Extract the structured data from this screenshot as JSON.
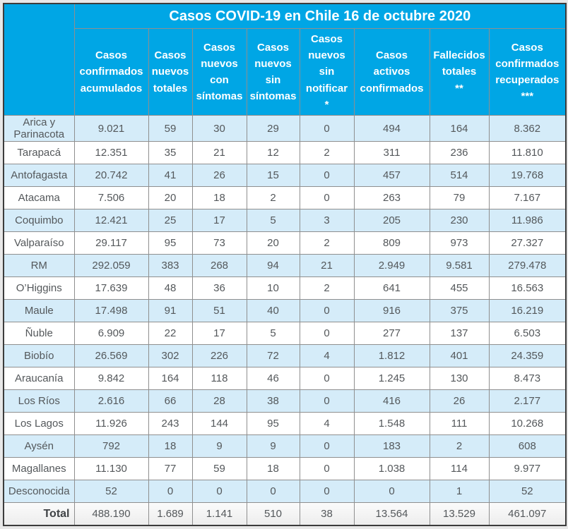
{
  "page": {
    "title": "Casos COVID-19 en Chile 16 de octubre 2020"
  },
  "colors": {
    "header_background": "#00a6e5",
    "header_text": "#ffffff",
    "row_alt_background": "#d5ecf9",
    "row_background": "#ffffff",
    "total_row_background": "#f2f2f2",
    "grid_line": "#8f8f8f",
    "outer_border": "#3c3c3c",
    "data_text": "#54585b",
    "page_background": "#e8e8e8"
  },
  "table": {
    "corner_label": "",
    "columns": [
      "Casos\nconfirmados\nacumulados",
      "Casos\nnuevos\ntotales",
      "Casos\nnuevos\ncon\nsíntomas",
      "Casos\nnuevos\nsin\nsíntomas",
      "Casos\nnuevos\nsin\nnotificar\n*",
      "Casos\nactivos\nconfirmados",
      "Fallecidos\ntotales\n**",
      "Casos\nconfirmados\nrecuperados\n***"
    ],
    "rows": [
      {
        "region": "Arica y Parinacota",
        "values": [
          "9.021",
          "59",
          "30",
          "29",
          "0",
          "494",
          "164",
          "8.362"
        ]
      },
      {
        "region": "Tarapacá",
        "values": [
          "12.351",
          "35",
          "21",
          "12",
          "2",
          "311",
          "236",
          "11.810"
        ]
      },
      {
        "region": "Antofagasta",
        "values": [
          "20.742",
          "41",
          "26",
          "15",
          "0",
          "457",
          "514",
          "19.768"
        ]
      },
      {
        "region": "Atacama",
        "values": [
          "7.506",
          "20",
          "18",
          "2",
          "0",
          "263",
          "79",
          "7.167"
        ]
      },
      {
        "region": "Coquimbo",
        "values": [
          "12.421",
          "25",
          "17",
          "5",
          "3",
          "205",
          "230",
          "11.986"
        ]
      },
      {
        "region": "Valparaíso",
        "values": [
          "29.117",
          "95",
          "73",
          "20",
          "2",
          "809",
          "973",
          "27.327"
        ]
      },
      {
        "region": "RM",
        "values": [
          "292.059",
          "383",
          "268",
          "94",
          "21",
          "2.949",
          "9.581",
          "279.478"
        ]
      },
      {
        "region": "O’Higgins",
        "values": [
          "17.639",
          "48",
          "36",
          "10",
          "2",
          "641",
          "455",
          "16.563"
        ]
      },
      {
        "region": "Maule",
        "values": [
          "17.498",
          "91",
          "51",
          "40",
          "0",
          "916",
          "375",
          "16.219"
        ]
      },
      {
        "region": "Ñuble",
        "values": [
          "6.909",
          "22",
          "17",
          "5",
          "0",
          "277",
          "137",
          "6.503"
        ]
      },
      {
        "region": "Biobío",
        "values": [
          "26.569",
          "302",
          "226",
          "72",
          "4",
          "1.812",
          "401",
          "24.359"
        ]
      },
      {
        "region": "Araucanía",
        "values": [
          "9.842",
          "164",
          "118",
          "46",
          "0",
          "1.245",
          "130",
          "8.473"
        ]
      },
      {
        "region": "Los Ríos",
        "values": [
          "2.616",
          "66",
          "28",
          "38",
          "0",
          "416",
          "26",
          "2.177"
        ]
      },
      {
        "region": "Los Lagos",
        "values": [
          "11.926",
          "243",
          "144",
          "95",
          "4",
          "1.548",
          "111",
          "10.268"
        ]
      },
      {
        "region": "Aysén",
        "values": [
          "792",
          "18",
          "9",
          "9",
          "0",
          "183",
          "2",
          "608"
        ]
      },
      {
        "region": "Magallanes",
        "values": [
          "11.130",
          "77",
          "59",
          "18",
          "0",
          "1.038",
          "114",
          "9.977"
        ]
      },
      {
        "region": "Desconocida",
        "values": [
          "52",
          "0",
          "0",
          "0",
          "0",
          "0",
          "1",
          "52"
        ]
      }
    ],
    "total": {
      "label": "Total",
      "values": [
        "488.190",
        "1.689",
        "1.141",
        "510",
        "38",
        "13.564",
        "13.529",
        "461.097"
      ]
    }
  },
  "chart_data": {
    "type": "table",
    "title": "Casos COVID-19 en Chile 16 de octubre 2020",
    "columns": [
      "",
      "Casos confirmados acumulados",
      "Casos nuevos totales",
      "Casos nuevos con síntomas",
      "Casos nuevos sin síntomas",
      "Casos nuevos sin notificar *",
      "Casos activos confirmados",
      "Fallecidos totales **",
      "Casos confirmados recuperados ***"
    ],
    "rows": [
      [
        "Arica y Parinacota",
        "9.021",
        "59",
        "30",
        "29",
        "0",
        "494",
        "164",
        "8.362"
      ],
      [
        "Tarapacá",
        "12.351",
        "35",
        "21",
        "12",
        "2",
        "311",
        "236",
        "11.810"
      ],
      [
        "Antofagasta",
        "20.742",
        "41",
        "26",
        "15",
        "0",
        "457",
        "514",
        "19.768"
      ],
      [
        "Atacama",
        "7.506",
        "20",
        "18",
        "2",
        "0",
        "263",
        "79",
        "7.167"
      ],
      [
        "Coquimbo",
        "12.421",
        "25",
        "17",
        "5",
        "3",
        "205",
        "230",
        "11.986"
      ],
      [
        "Valparaíso",
        "29.117",
        "95",
        "73",
        "20",
        "2",
        "809",
        "973",
        "27.327"
      ],
      [
        "RM",
        "292.059",
        "383",
        "268",
        "94",
        "21",
        "2.949",
        "9.581",
        "279.478"
      ],
      [
        "O’Higgins",
        "17.639",
        "48",
        "36",
        "10",
        "2",
        "641",
        "455",
        "16.563"
      ],
      [
        "Maule",
        "17.498",
        "91",
        "51",
        "40",
        "0",
        "916",
        "375",
        "16.219"
      ],
      [
        "Ñuble",
        "6.909",
        "22",
        "17",
        "5",
        "0",
        "277",
        "137",
        "6.503"
      ],
      [
        "Biobío",
        "26.569",
        "302",
        "226",
        "72",
        "4",
        "1.812",
        "401",
        "24.359"
      ],
      [
        "Araucanía",
        "9.842",
        "164",
        "118",
        "46",
        "0",
        "1.245",
        "130",
        "8.473"
      ],
      [
        "Los Ríos",
        "2.616",
        "66",
        "28",
        "38",
        "0",
        "416",
        "26",
        "2.177"
      ],
      [
        "Los Lagos",
        "11.926",
        "243",
        "144",
        "95",
        "4",
        "1.548",
        "111",
        "10.268"
      ],
      [
        "Aysén",
        "792",
        "18",
        "9",
        "9",
        "0",
        "183",
        "2",
        "608"
      ],
      [
        "Magallanes",
        "11.130",
        "77",
        "59",
        "18",
        "0",
        "1.038",
        "114",
        "9.977"
      ],
      [
        "Desconocida",
        "52",
        "0",
        "0",
        "0",
        "0",
        "0",
        "1",
        "52"
      ],
      [
        "Total",
        "488.190",
        "1.689",
        "1.141",
        "510",
        "38",
        "13.564",
        "13.529",
        "461.097"
      ]
    ]
  }
}
